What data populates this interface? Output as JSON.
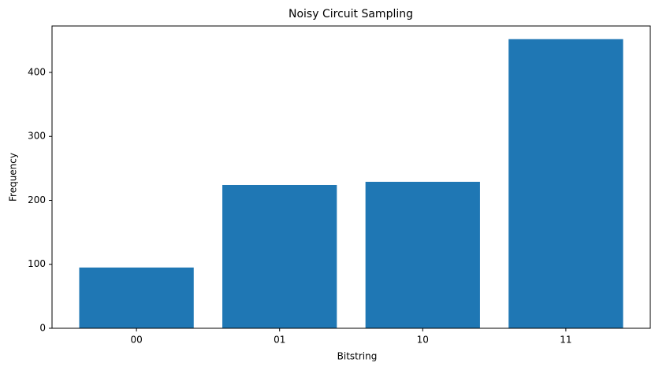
{
  "chart_data": {
    "type": "bar",
    "title": "Noisy Circuit Sampling",
    "x_label": "Bitstring",
    "y_label": "Frequency",
    "categories": [
      "00",
      "01",
      "10",
      "11"
    ],
    "values": [
      95,
      224,
      229,
      452
    ],
    "color": "#1f77b4",
    "ylim": [
      0,
      472.6
    ],
    "yticks": [
      0,
      100,
      200,
      300,
      400
    ],
    "grid": false
  }
}
